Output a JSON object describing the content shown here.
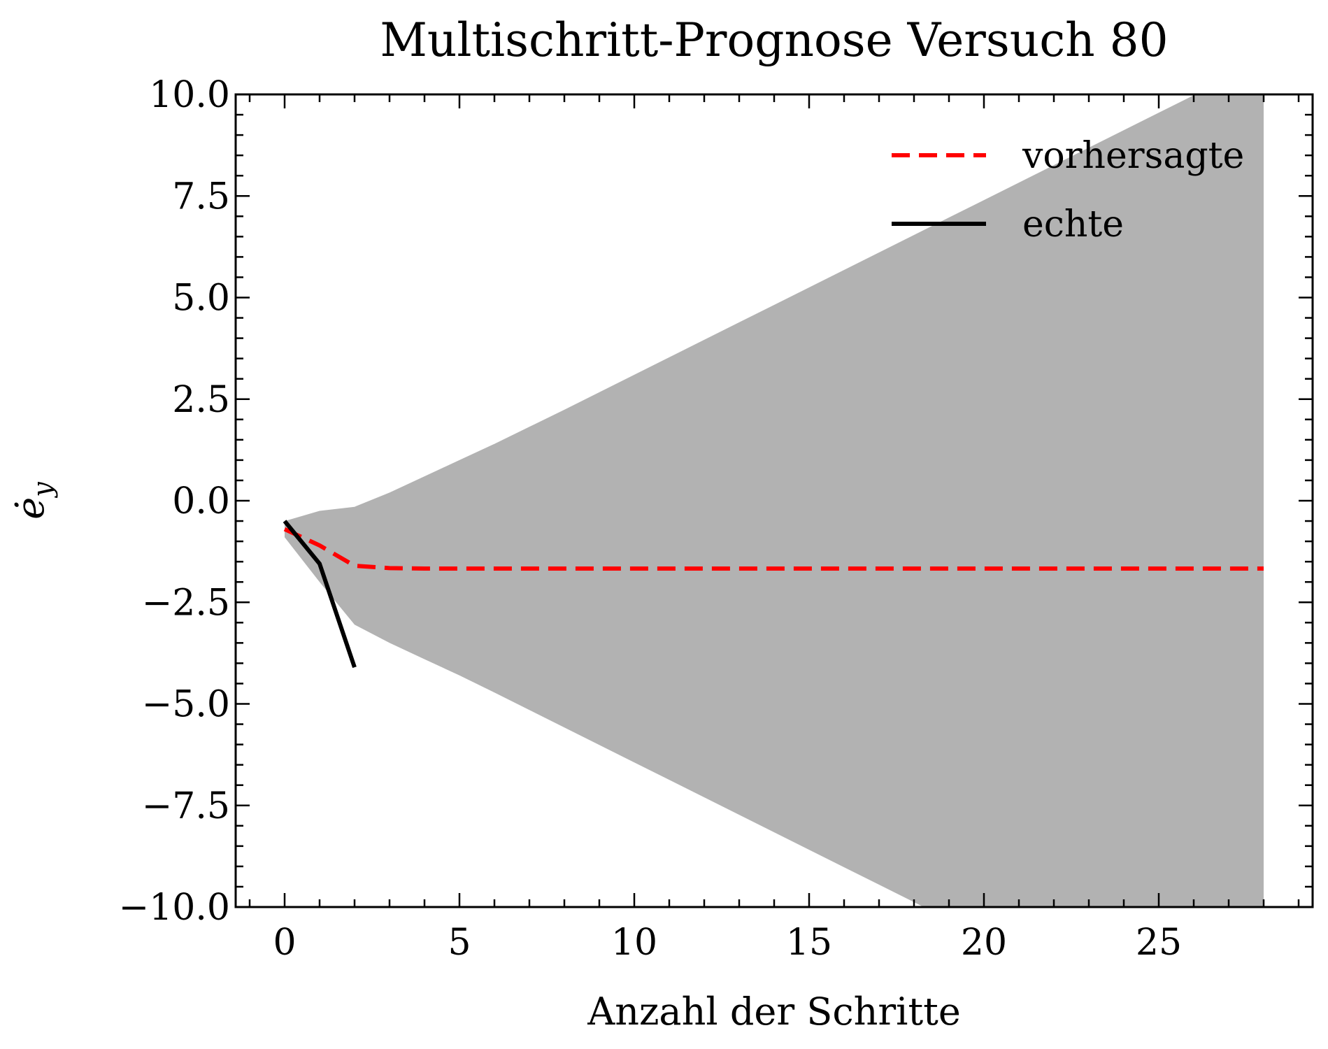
{
  "chart_data": {
    "type": "line",
    "title": "Multischritt-Prognose Versuch 80",
    "xlabel": "Anzahl der Schritte",
    "ylabel": "ė_y",
    "xlim": [
      -1.4,
      29.4
    ],
    "ylim": [
      -10.0,
      10.0
    ],
    "x_ticks": [
      0,
      5,
      10,
      15,
      20,
      25
    ],
    "x_tick_labels": [
      "0",
      "5",
      "10",
      "15",
      "20",
      "25"
    ],
    "y_ticks": [
      -10,
      -7.5,
      -5,
      -2.5,
      0,
      2.5,
      5,
      7.5,
      10
    ],
    "y_tick_labels": [
      "−10.0",
      "−7.5",
      "−5.0",
      "−2.5",
      "0.0",
      "2.5",
      "5.0",
      "7.5",
      "10.0"
    ],
    "grid": false,
    "legend_position": "top-right",
    "x": [
      0,
      1,
      2,
      3,
      4,
      5,
      6,
      7,
      8,
      9,
      10,
      11,
      12,
      13,
      14,
      15,
      16,
      17,
      18,
      19,
      20,
      21,
      22,
      23,
      24,
      25,
      26,
      27,
      28
    ],
    "series": [
      {
        "name": "vorhersagte",
        "style": "dashed",
        "color": "#ff0000",
        "values": [
          -0.7,
          -1.1,
          -1.6,
          -1.66,
          -1.67,
          -1.67,
          -1.67,
          -1.67,
          -1.67,
          -1.67,
          -1.67,
          -1.67,
          -1.67,
          -1.67,
          -1.67,
          -1.67,
          -1.67,
          -1.67,
          -1.67,
          -1.67,
          -1.67,
          -1.67,
          -1.67,
          -1.67,
          -1.67,
          -1.67,
          -1.67,
          -1.67,
          -1.67
        ]
      },
      {
        "name": "echte",
        "style": "solid",
        "color": "#000000",
        "x": [
          0,
          1,
          2
        ],
        "values": [
          -0.5,
          -1.55,
          -4.1
        ]
      }
    ],
    "band": {
      "color": "#b2b2b2",
      "upper": [
        -0.5,
        -0.25,
        -0.15,
        0.2,
        0.6,
        1.0,
        1.4,
        1.82,
        2.24,
        2.67,
        3.1,
        3.53,
        3.96,
        4.39,
        4.82,
        5.25,
        5.68,
        6.11,
        6.54,
        6.97,
        7.4,
        7.83,
        8.26,
        8.69,
        9.12,
        9.55,
        9.98,
        10.41,
        10.84
      ],
      "lower": [
        -0.9,
        -2.0,
        -3.05,
        -3.5,
        -3.9,
        -4.3,
        -4.72,
        -5.15,
        -5.58,
        -6.01,
        -6.44,
        -6.87,
        -7.3,
        -7.73,
        -8.16,
        -8.59,
        -9.02,
        -9.45,
        -9.88,
        -10.31,
        -10.74,
        -11.17,
        -11.6,
        -12.03,
        -12.46,
        -12.89,
        -13.32,
        -13.75,
        -14.18
      ]
    }
  }
}
